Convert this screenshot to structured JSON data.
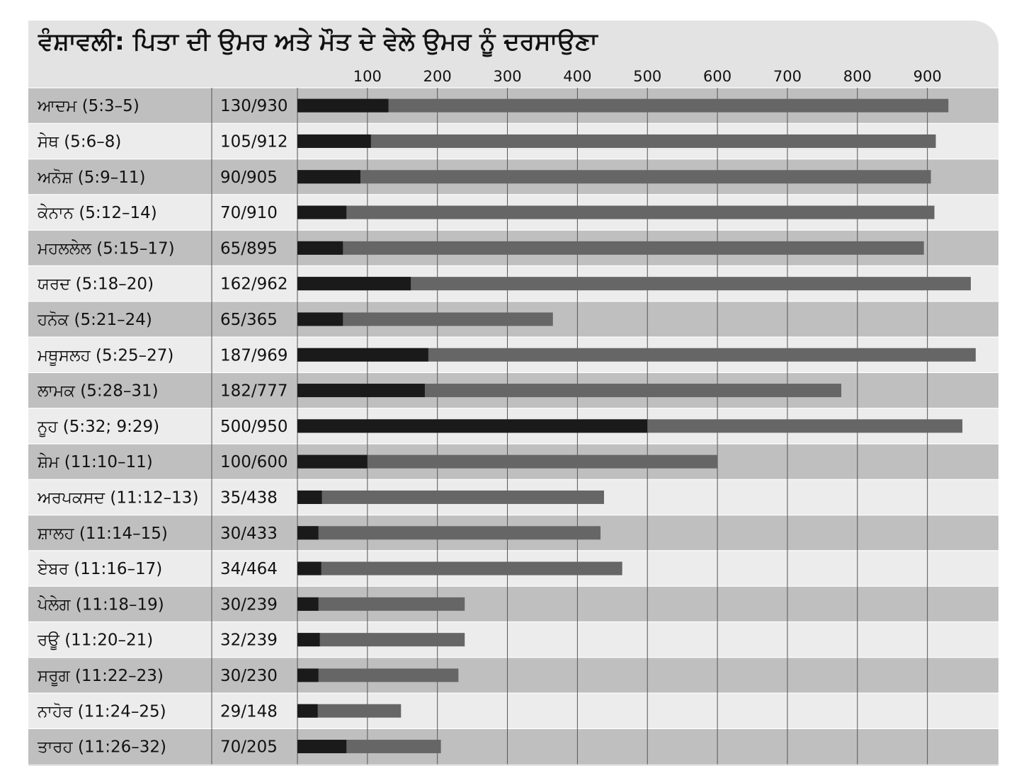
{
  "chart_data": {
    "type": "bar",
    "title": "ਵੰਸ਼ਾਵਲੀ: ਪਿਤਾ ਦੀ ਉਮਰ ਅਤੇ ਮੌਤ ਦੇ ਵੇਲੇ ਉਮਰ ਨੂੰ ਦਰਸਾਉਣਾ",
    "orientation": "horizontal",
    "stacked": "overlay",
    "xlim": [
      0,
      1000
    ],
    "x_ticks": [
      100,
      200,
      300,
      400,
      500,
      600,
      700,
      800,
      900
    ],
    "x_tick_labels": [
      "100",
      "200",
      "300",
      "400",
      "500",
      "600",
      "700",
      "800",
      "900"
    ],
    "grid": true,
    "colors": {
      "father_age": "#1a1a1a",
      "death_age": "#666666",
      "row_dark": "#bfbfbf",
      "row_light": "#ececec",
      "header": "#e3e3e3"
    },
    "rows": [
      {
        "name": "ਆਦਮ (5:3–5)",
        "label": "130/930",
        "father_age": 130,
        "death_age": 930
      },
      {
        "name": "ਸੇਥ (5:6–8)",
        "label": "105/912",
        "father_age": 105,
        "death_age": 912
      },
      {
        "name": "ਅਨੋਸ਼ (5:9–11)",
        "label": "90/905",
        "father_age": 90,
        "death_age": 905
      },
      {
        "name": "ਕੇਨਾਨ (5:12–14)",
        "label": "70/910",
        "father_age": 70,
        "death_age": 910
      },
      {
        "name": "ਮਹਲਲੇਲ (5:15–17)",
        "label": "65/895",
        "father_age": 65,
        "death_age": 895
      },
      {
        "name": "ਯਰਦ (5:18–20)",
        "label": "162/962",
        "father_age": 162,
        "death_age": 962
      },
      {
        "name": "ਹਨੋਕ (5:21–24)",
        "label": "65/365",
        "father_age": 65,
        "death_age": 365
      },
      {
        "name": "ਮਥੂਸਲਹ (5:25–27)",
        "label": "187/969",
        "father_age": 187,
        "death_age": 969
      },
      {
        "name": "ਲਾਮਕ (5:28–31)",
        "label": "182/777",
        "father_age": 182,
        "death_age": 777
      },
      {
        "name": "ਨੂਹ (5:32; 9:29)",
        "label": "500/950",
        "father_age": 500,
        "death_age": 950
      },
      {
        "name": "ਸ਼ੇਮ (11:10–11)",
        "label": "100/600",
        "father_age": 100,
        "death_age": 600
      },
      {
        "name": "ਅਰਪਕਸਦ (11:12–13)",
        "label": "35/438",
        "father_age": 35,
        "death_age": 438
      },
      {
        "name": "ਸ਼ਾਲਹ (11:14–15)",
        "label": "30/433",
        "father_age": 30,
        "death_age": 433
      },
      {
        "name": "ਏਬਰ (11:16–17)",
        "label": "34/464",
        "father_age": 34,
        "death_age": 464
      },
      {
        "name": "ਪੇਲੇਗ (11:18–19)",
        "label": "30/239",
        "father_age": 30,
        "death_age": 239
      },
      {
        "name": "ਰਊ (11:20–21)",
        "label": "32/239",
        "father_age": 32,
        "death_age": 239
      },
      {
        "name": "ਸਰੂਗ (11:22–23)",
        "label": "30/230",
        "father_age": 30,
        "death_age": 230
      },
      {
        "name": "ਨਾਹੋਰ (11:24–25)",
        "label": "29/148",
        "father_age": 29,
        "death_age": 148
      },
      {
        "name": "ਤਾਰਹ (11:26–32)",
        "label": "70/205",
        "father_age": 70,
        "death_age": 205
      }
    ]
  }
}
